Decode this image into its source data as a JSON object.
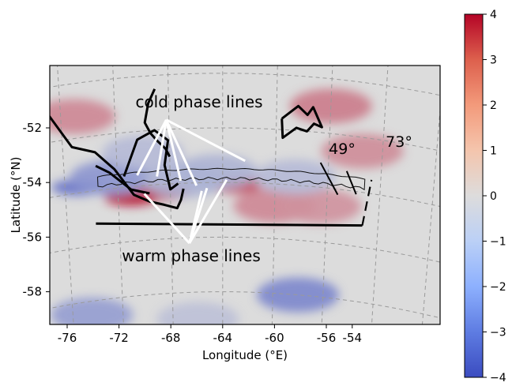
{
  "chart_data": {
    "type": "heatmap",
    "title": "",
    "xlabel": "Longitude (°E)",
    "ylabel": "Latitude (°N)",
    "x_ticks": [
      -76,
      -72,
      -68,
      -64,
      -60,
      -56,
      -54
    ],
    "x_tick_labels": [
      "-76",
      "-72",
      "-68",
      "-64",
      "-60",
      "-56",
      "-54"
    ],
    "y_ticks": [
      -52,
      -54,
      -56,
      -58
    ],
    "y_tick_labels": [
      "-52",
      "-54",
      "-56",
      "-58"
    ],
    "xlim": [
      -77,
      -51
    ],
    "ylim": [
      -59.5,
      -50.5
    ],
    "grid": true,
    "colormap": "coolwarm",
    "colorbar": {
      "range": [
        -4,
        4
      ],
      "ticks": [
        4,
        3,
        2,
        1,
        0,
        -1,
        -2,
        -3,
        -4
      ],
      "tick_labels": [
        "4",
        "3",
        "2",
        "1",
        "0",
        "−1",
        "−2",
        "−3",
        "−4"
      ],
      "color_low": "#3b4cc0",
      "color_mid": "#dddddd",
      "color_high": "#b40426"
    },
    "annotations": {
      "cold_label": "cold phase lines",
      "warm_label": "warm phase lines",
      "angle_left": "49°",
      "angle_right": "73°"
    },
    "field_blobs": [
      {
        "lon": -71.0,
        "lat": -54.4,
        "value": 3.8
      },
      {
        "lon": -68.5,
        "lat": -54.3,
        "value": 3.0
      },
      {
        "lon": -63.0,
        "lat": -54.1,
        "value": 2.8
      },
      {
        "lon": -60.0,
        "lat": -54.8,
        "value": 1.6
      },
      {
        "lon": -56.5,
        "lat": -54.7,
        "value": 1.4
      },
      {
        "lon": -75.0,
        "lat": -51.2,
        "value": 1.6
      },
      {
        "lon": -56.0,
        "lat": -51.0,
        "value": 1.8
      },
      {
        "lon": -53.5,
        "lat": -52.5,
        "value": 1.5
      },
      {
        "lon": -75.0,
        "lat": -53.8,
        "value": -3.0
      },
      {
        "lon": -72.5,
        "lat": -53.6,
        "value": -2.0
      },
      {
        "lon": -67.0,
        "lat": -53.9,
        "value": -1.2
      },
      {
        "lon": -64.5,
        "lat": -53.6,
        "value": -1.2
      },
      {
        "lon": -58.5,
        "lat": -53.7,
        "value": -1.0
      },
      {
        "lon": -70.0,
        "lat": -52.8,
        "value": -1.0
      },
      {
        "lon": -74.5,
        "lat": -58.5,
        "value": -1.8
      },
      {
        "lon": -58.0,
        "lat": -58.0,
        "value": -2.4
      },
      {
        "lon": -66.0,
        "lat": -59.0,
        "value": -0.8
      }
    ],
    "domain_box": {
      "lon_min": -73.8,
      "lon_max": -53.2,
      "lat_min": -55.2,
      "lat_max": -53.5
    },
    "coastlines": [
      [
        [
          -77,
          -50.9
        ],
        [
          -75.3,
          -52.3
        ],
        [
          -73.6,
          -52.6
        ],
        [
          -72.2,
          -53.3
        ],
        [
          -70.8,
          -54.3
        ],
        [
          -69.6,
          -54.6
        ],
        [
          -68.5,
          -54.75
        ],
        [
          -67.5,
          -54.9
        ],
        [
          -67.2,
          -54.6
        ],
        [
          -67.0,
          -54.2
        ]
      ],
      [
        [
          -69.0,
          -50.5
        ],
        [
          -69.5,
          -51.0
        ],
        [
          -69.8,
          -51.7
        ],
        [
          -69.4,
          -52.1
        ],
        [
          -68.9,
          -52.4
        ],
        [
          -68.3,
          -52.7
        ],
        [
          -68.0,
          -53.0
        ]
      ],
      [
        [
          -71.5,
          -53.6
        ],
        [
          -70.4,
          -52.3
        ],
        [
          -69.1,
          -52.0
        ],
        [
          -68.1,
          -52.4
        ],
        [
          -68.4,
          -53.3
        ],
        [
          -68.0,
          -54.2
        ],
        [
          -67.4,
          -54.0
        ]
      ],
      [
        [
          -73.6,
          -53.1
        ],
        [
          -72.6,
          -53.4
        ],
        [
          -71.0,
          -54.1
        ],
        [
          -69.6,
          -54.3
        ]
      ],
      [
        [
          -59.6,
          -51.6
        ],
        [
          -58.4,
          -51.1
        ],
        [
          -57.7,
          -51.4
        ],
        [
          -57.3,
          -51.1
        ],
        [
          -56.6,
          -51.8
        ],
        [
          -57.2,
          -51.7
        ],
        [
          -57.7,
          -52.0
        ],
        [
          -58.5,
          -51.9
        ],
        [
          -59.5,
          -52.3
        ],
        [
          -59.6,
          -51.6
        ]
      ]
    ],
    "phase_lines": {
      "cold_origin": [
        -68.2,
        -51.65
      ],
      "cold_targets": [
        [
          -70.5,
          -53.6
        ],
        [
          -67.2,
          -53.9
        ],
        [
          -62.3,
          -53.2
        ],
        [
          -69.0,
          -53.7
        ],
        [
          -66.0,
          -54.1
        ]
      ],
      "warm_origin": [
        -66.6,
        -56.2
      ],
      "warm_targets": [
        [
          -70.0,
          -54.3
        ],
        [
          -65.6,
          -54.3
        ],
        [
          -65.2,
          -54.2
        ],
        [
          -63.7,
          -53.9
        ]
      ],
      "angle_lines": [
        [
          [
            -56.6,
            -53.1
          ],
          [
            -55.2,
            -54.2
          ]
        ],
        [
          [
            -54.6,
            -53.3
          ],
          [
            -53.8,
            -54.1
          ]
        ]
      ]
    }
  }
}
